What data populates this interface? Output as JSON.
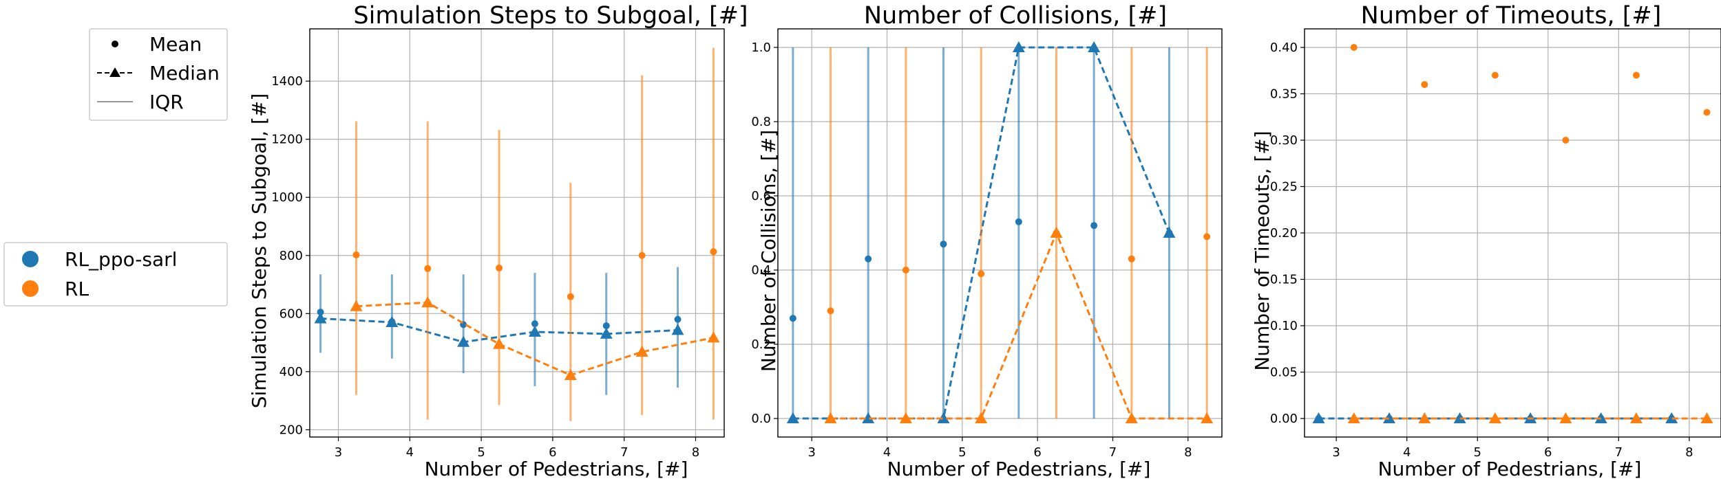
{
  "colors": {
    "ppo": "#1f77b4",
    "rl": "#ff7f0e",
    "grid": "#b0b0b0"
  },
  "style_legend": {
    "entries": [
      "Mean",
      "Median",
      "IQR"
    ]
  },
  "series_legend": {
    "entries": [
      "RL_ppo-sarl",
      "RL"
    ]
  },
  "chart_data": [
    {
      "type": "scatter",
      "title": "Simulation Steps to Subgoal, [#]",
      "xlabel": "Number of Pedestrians, [#]",
      "ylabel": "Simulation Steps to Subgoal, [#]",
      "xlim": [
        2.6,
        8.4
      ],
      "ylim": [
        175,
        1580
      ],
      "xticks": [
        3,
        4,
        5,
        6,
        7,
        8
      ],
      "yticks": [
        200,
        400,
        600,
        800,
        1000,
        1200,
        1400
      ],
      "ytick_labels": [
        "200",
        "400",
        "600",
        "800",
        "1000",
        "1200",
        "1400"
      ],
      "grid": true,
      "series": [
        {
          "name": "RL_ppo-sarl",
          "color": "#1f77b4",
          "x": [
            2.75,
            3.75,
            4.75,
            5.75,
            6.75,
            7.75
          ],
          "mean": [
            605,
            572,
            562,
            565,
            558,
            580
          ],
          "median": [
            583,
            570,
            502,
            537,
            530,
            543
          ],
          "iqr_low": [
            465,
            445,
            395,
            350,
            320,
            345
          ],
          "iqr_high": [
            735,
            735,
            735,
            740,
            740,
            760
          ]
        },
        {
          "name": "RL",
          "color": "#ff7f0e",
          "x": [
            3.25,
            4.25,
            5.25,
            6.25,
            7.25,
            8.25
          ],
          "mean": [
            802,
            755,
            757,
            658,
            800,
            813
          ],
          "median": [
            625,
            638,
            495,
            388,
            468,
            517
          ],
          "iqr_low": [
            320,
            235,
            285,
            230,
            250,
            235
          ],
          "iqr_high": [
            1262,
            1262,
            1232,
            1050,
            1420,
            1515
          ]
        }
      ]
    },
    {
      "type": "scatter",
      "title": "Number of Collisions, [#]",
      "xlabel": "Number of Pedestrians, [#]",
      "ylabel": "Number of Collisions, [#]",
      "xlim": [
        2.55,
        8.45
      ],
      "ylim": [
        -0.05,
        1.05
      ],
      "xticks": [
        3,
        4,
        5,
        6,
        7,
        8
      ],
      "yticks": [
        0,
        0.2,
        0.4,
        0.6,
        0.8,
        1.0
      ],
      "ytick_labels": [
        "0.0",
        "0.2",
        "0.4",
        "0.6",
        "0.8",
        "1.0"
      ],
      "grid": true,
      "series": [
        {
          "name": "RL_ppo-sarl",
          "color": "#1f77b4",
          "x": [
            2.75,
            3.75,
            4.75,
            5.75,
            6.75,
            7.75
          ],
          "mean": [
            0.27,
            0.43,
            0.47,
            0.53,
            0.52,
            0.5
          ],
          "median": [
            0,
            0,
            0,
            1,
            1,
            0.5
          ],
          "iqr_low": [
            0,
            0,
            0,
            0,
            0,
            0
          ],
          "iqr_high": [
            1,
            1,
            1,
            1,
            1,
            1
          ]
        },
        {
          "name": "RL",
          "color": "#ff7f0e",
          "x": [
            3.25,
            4.25,
            5.25,
            6.25,
            7.25,
            8.25
          ],
          "mean": [
            0.29,
            0.4,
            0.39,
            0.5,
            0.43,
            0.49
          ],
          "median": [
            0,
            0,
            0,
            0.5,
            0,
            0
          ],
          "iqr_low": [
            0,
            0,
            0,
            0,
            0,
            0
          ],
          "iqr_high": [
            1,
            1,
            1,
            1,
            1,
            1
          ]
        }
      ]
    },
    {
      "type": "scatter",
      "title": "Number of Timeouts, [#]",
      "xlabel": "Number of Pedestrians, [#]",
      "ylabel": "Number of Timeouts, [#]",
      "xlim": [
        2.55,
        8.45
      ],
      "ylim": [
        -0.02,
        0.42
      ],
      "xticks": [
        3,
        4,
        5,
        6,
        7,
        8
      ],
      "yticks": [
        0,
        0.05,
        0.1,
        0.15,
        0.2,
        0.25,
        0.3,
        0.35,
        0.4
      ],
      "ytick_labels": [
        "0.00",
        "0.05",
        "0.10",
        "0.15",
        "0.20",
        "0.25",
        "0.30",
        "0.35",
        "0.40"
      ],
      "grid": true,
      "series": [
        {
          "name": "RL_ppo-sarl",
          "color": "#1f77b4",
          "x": [
            2.75,
            3.75,
            4.75,
            5.75,
            6.75,
            7.75
          ],
          "mean": [
            0,
            0,
            0,
            0,
            0,
            0
          ],
          "median": [
            0,
            0,
            0,
            0,
            0,
            0
          ],
          "iqr_low": [
            0,
            0,
            0,
            0,
            0,
            0
          ],
          "iqr_high": [
            0,
            0,
            0,
            0,
            0,
            0
          ]
        },
        {
          "name": "RL",
          "color": "#ff7f0e",
          "x": [
            3.25,
            4.25,
            5.25,
            6.25,
            7.25,
            8.25
          ],
          "mean": [
            0.4,
            0.36,
            0.37,
            0.3,
            0.37,
            0.33
          ],
          "median": [
            0,
            0,
            0,
            0,
            0,
            0
          ],
          "iqr_low": [
            0,
            0,
            0,
            0,
            0,
            0
          ],
          "iqr_high": [
            0,
            0,
            0,
            0,
            0,
            0
          ]
        }
      ]
    }
  ]
}
